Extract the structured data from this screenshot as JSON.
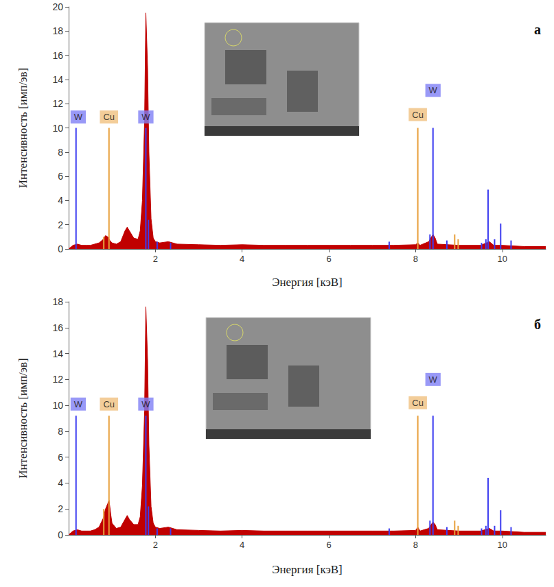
{
  "chart_data": [
    {
      "type": "line",
      "title": "a",
      "x_label": "Энергия [кэВ]",
      "y_label": "Интенсивность [имп/эв]",
      "xlim": [
        0,
        11
      ],
      "xticks": [
        2,
        4,
        6,
        8,
        10
      ],
      "ylim": [
        0,
        20
      ],
      "yticks": [
        0,
        2,
        4,
        6,
        8,
        10,
        12,
        14,
        16,
        18,
        20
      ],
      "grid": false,
      "series": [
        {
          "type": "area",
          "color": "#c00000",
          "x": [
            0.0,
            0.1,
            0.2,
            0.3,
            0.4,
            0.5,
            0.6,
            0.7,
            0.8,
            0.85,
            0.9,
            0.95,
            1.0,
            1.1,
            1.2,
            1.3,
            1.35,
            1.4,
            1.5,
            1.6,
            1.65,
            1.7,
            1.75,
            1.78,
            1.82,
            1.85,
            1.9,
            1.95,
            2.0,
            2.1,
            2.3,
            2.5,
            3.0,
            3.5,
            4.0,
            4.5,
            5.0,
            5.5,
            6.0,
            6.5,
            7.0,
            7.5,
            8.0,
            8.05,
            8.1,
            8.3,
            8.4,
            8.45,
            8.5,
            9.0,
            9.5,
            9.7,
            9.8,
            10.0,
            10.5,
            11.0
          ],
          "values": [
            0.0,
            0.3,
            0.4,
            0.3,
            0.3,
            0.3,
            0.4,
            0.5,
            0.8,
            1.1,
            1.0,
            0.7,
            0.5,
            0.4,
            0.6,
            1.5,
            1.8,
            1.5,
            0.9,
            0.8,
            1.5,
            4.0,
            10.5,
            19.5,
            15.0,
            8.0,
            2.5,
            0.9,
            0.6,
            0.5,
            0.6,
            0.4,
            0.35,
            0.3,
            0.35,
            0.3,
            0.3,
            0.3,
            0.3,
            0.3,
            0.3,
            0.3,
            0.35,
            0.5,
            0.3,
            0.6,
            1.2,
            0.9,
            0.4,
            0.3,
            0.3,
            0.6,
            0.3,
            0.3,
            0.2,
            0.2
          ]
        },
        {
          "name": "W",
          "type": "bar",
          "color": "#3c3cf0",
          "x": [
            0.17,
            1.78,
            1.84,
            2.04,
            2.35,
            7.39,
            8.33,
            8.4,
            8.72,
            9.52,
            9.62,
            9.67,
            9.82,
            9.96,
            10.2
          ],
          "values": [
            10,
            10,
            2.4,
            0.6,
            0.5,
            0.6,
            1.2,
            10,
            0.7,
            0.5,
            0.8,
            4.9,
            0.8,
            2.1,
            0.7
          ]
        },
        {
          "name": "Cu",
          "type": "bar",
          "color": "#e8a03c",
          "x": [
            0.81,
            0.93,
            8.05,
            8.9,
            8.98
          ],
          "values": [
            1.0,
            10,
            10,
            1.2,
            0.8
          ]
        }
      ],
      "annotations": [
        {
          "text": "W",
          "x": 0.22,
          "y": 10.9
        },
        {
          "text": "Cu",
          "x": 0.93,
          "y": 10.9
        },
        {
          "text": "W",
          "x": 1.78,
          "y": 10.9
        },
        {
          "text": "Cu",
          "x": 8.05,
          "y": 11.1
        },
        {
          "text": "W",
          "x": 8.4,
          "y": 13.1
        }
      ]
    },
    {
      "type": "line",
      "title": "б",
      "x_label": "Энергия [кэВ]",
      "y_label": "Интенсивность [имп/эв]",
      "xlim": [
        0,
        11
      ],
      "xticks": [
        2,
        4,
        6,
        8,
        10
      ],
      "ylim": [
        0,
        18
      ],
      "yticks": [
        0,
        2,
        4,
        6,
        8,
        10,
        12,
        14,
        16,
        18
      ],
      "grid": false,
      "series": [
        {
          "type": "area",
          "color": "#c00000",
          "x": [
            0.0,
            0.1,
            0.2,
            0.3,
            0.4,
            0.5,
            0.6,
            0.7,
            0.8,
            0.85,
            0.9,
            0.93,
            0.97,
            1.0,
            1.1,
            1.2,
            1.3,
            1.35,
            1.4,
            1.5,
            1.6,
            1.65,
            1.7,
            1.75,
            1.78,
            1.82,
            1.85,
            1.9,
            1.95,
            2.0,
            2.1,
            2.3,
            2.5,
            3.0,
            3.5,
            4.0,
            4.5,
            5.0,
            5.5,
            6.0,
            6.5,
            7.0,
            7.5,
            8.0,
            8.05,
            8.1,
            8.3,
            8.4,
            8.45,
            8.5,
            9.0,
            9.5,
            9.7,
            9.8,
            10.0,
            10.5,
            11.0
          ],
          "values": [
            0.0,
            0.3,
            0.4,
            0.3,
            0.3,
            0.3,
            0.4,
            0.6,
            1.3,
            2.0,
            2.4,
            2.7,
            1.6,
            0.9,
            0.5,
            0.6,
            1.2,
            1.5,
            1.2,
            0.8,
            0.8,
            1.4,
            3.8,
            9.5,
            17.6,
            13.5,
            7.0,
            2.2,
            0.9,
            0.6,
            0.5,
            0.6,
            0.4,
            0.35,
            0.3,
            0.35,
            0.3,
            0.3,
            0.3,
            0.3,
            0.3,
            0.3,
            0.3,
            0.35,
            0.6,
            0.3,
            0.5,
            1.0,
            0.8,
            0.4,
            0.3,
            0.3,
            0.5,
            0.3,
            0.3,
            0.2,
            0.2
          ]
        },
        {
          "name": "W",
          "type": "bar",
          "color": "#3c3cf0",
          "x": [
            0.17,
            1.78,
            1.84,
            2.04,
            2.35,
            7.39,
            8.33,
            8.4,
            8.72,
            9.52,
            9.62,
            9.67,
            9.82,
            9.96,
            10.2
          ],
          "values": [
            9.2,
            9.2,
            2.2,
            0.5,
            0.5,
            0.5,
            1.1,
            9.2,
            0.6,
            0.5,
            0.7,
            4.4,
            0.7,
            1.9,
            0.6
          ]
        },
        {
          "name": "Cu",
          "type": "bar",
          "color": "#e8a03c",
          "x": [
            0.81,
            0.93,
            8.05,
            8.9,
            8.98
          ],
          "values": [
            2.0,
            9.2,
            9.2,
            1.1,
            0.7
          ]
        }
      ],
      "annotations": [
        {
          "text": "W",
          "x": 0.22,
          "y": 10.1
        },
        {
          "text": "Cu",
          "x": 0.93,
          "y": 10.1
        },
        {
          "text": "W",
          "x": 1.78,
          "y": 10.1
        },
        {
          "text": "Cu",
          "x": 8.05,
          "y": 10.2
        },
        {
          "text": "W",
          "x": 8.4,
          "y": 12.0
        }
      ]
    }
  ]
}
